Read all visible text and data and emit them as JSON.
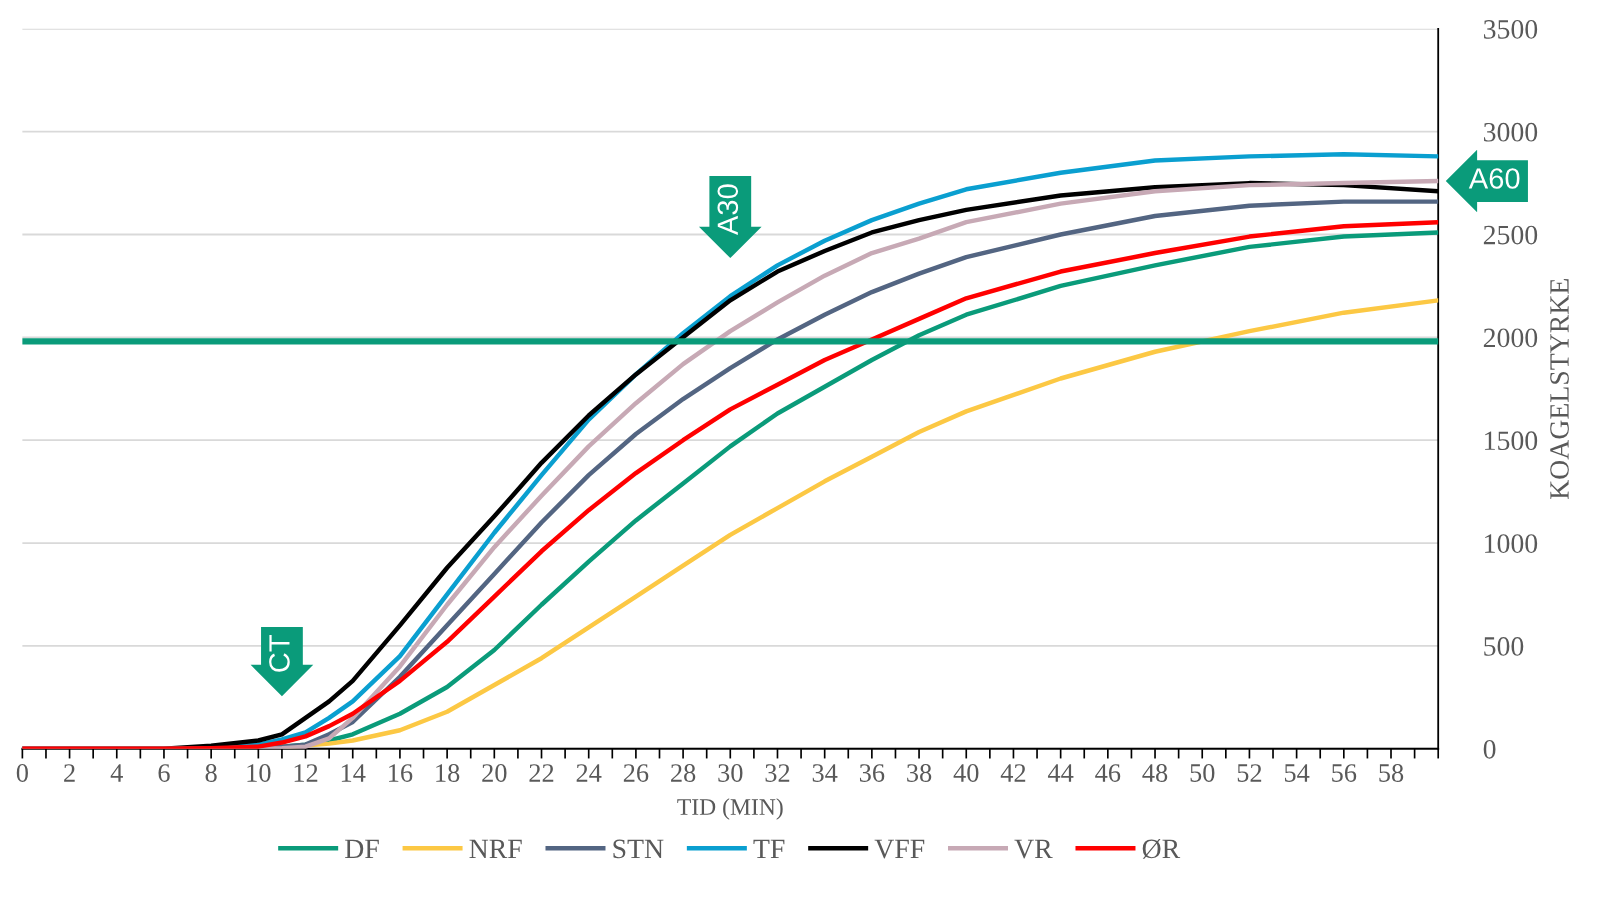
{
  "chart_data": {
    "type": "line",
    "xlabel": "TID (MIN)",
    "ylabel": "KOAGELSTYRKE",
    "x": [
      0,
      6,
      8,
      10,
      11,
      12,
      13,
      14,
      16,
      18,
      20,
      22,
      24,
      26,
      28,
      30,
      32,
      34,
      36,
      38,
      40,
      44,
      48,
      52,
      56,
      60
    ],
    "series": [
      {
        "name": "DF",
        "color": "#0a9b7a",
        "values": [
          null,
          null,
          0,
          3,
          10,
          20,
          40,
          70,
          170,
          300,
          480,
          700,
          910,
          1110,
          1290,
          1470,
          1630,
          1760,
          1890,
          2010,
          2110,
          2250,
          2350,
          2440,
          2490,
          2510
        ]
      },
      {
        "name": "NRF",
        "color": "#fcc844",
        "values": [
          null,
          null,
          null,
          null,
          8,
          15,
          25,
          40,
          90,
          180,
          310,
          440,
          590,
          740,
          890,
          1040,
          1170,
          1300,
          1420,
          1540,
          1640,
          1800,
          1930,
          2030,
          2120,
          2180
        ]
      },
      {
        "name": "STN",
        "color": "#536582",
        "values": [
          0,
          0,
          0,
          5,
          10,
          20,
          70,
          130,
          350,
          600,
          850,
          1100,
          1330,
          1530,
          1700,
          1850,
          1990,
          2110,
          2220,
          2310,
          2390,
          2500,
          2590,
          2640,
          2660,
          2660
        ]
      },
      {
        "name": "TF",
        "color": "#0a9fd0",
        "values": [
          null,
          null,
          5,
          20,
          45,
          80,
          150,
          230,
          450,
          750,
          1050,
          1330,
          1600,
          1820,
          2020,
          2200,
          2350,
          2470,
          2570,
          2650,
          2720,
          2800,
          2860,
          2880,
          2890,
          2880
        ]
      },
      {
        "name": "VFF",
        "color": "#000000",
        "values": [
          0,
          0,
          15,
          40,
          70,
          150,
          230,
          330,
          600,
          880,
          1130,
          1390,
          1620,
          1820,
          2000,
          2180,
          2320,
          2420,
          2510,
          2570,
          2620,
          2690,
          2730,
          2750,
          2740,
          2710
        ]
      },
      {
        "name": "VR",
        "color": "#c7a9b5",
        "values": [
          0,
          0,
          0,
          0,
          3,
          10,
          50,
          150,
          400,
          700,
          980,
          1230,
          1470,
          1680,
          1870,
          2030,
          2170,
          2300,
          2410,
          2480,
          2560,
          2650,
          2710,
          2740,
          2750,
          2760
        ]
      },
      {
        "name": "ØR",
        "color": "#ff0000",
        "values": [
          0,
          0,
          3,
          10,
          30,
          60,
          110,
          170,
          330,
          520,
          740,
          960,
          1160,
          1340,
          1500,
          1650,
          1770,
          1890,
          1990,
          2090,
          2190,
          2320,
          2410,
          2490,
          2540,
          2560
        ]
      }
    ],
    "xlim": [
      0,
      60
    ],
    "xticks": [
      0,
      {
        "value": 1,
        "label": null
      },
      2,
      {
        "value": 3,
        "label": null
      },
      4,
      {
        "value": 5,
        "label": null
      },
      6,
      {
        "value": 7,
        "label": null
      },
      8,
      {
        "value": 9,
        "label": null
      },
      10,
      {
        "value": 11,
        "label": null
      },
      12,
      {
        "value": 13,
        "label": null
      },
      14,
      {
        "value": 15,
        "label": null
      },
      16,
      {
        "value": 17,
        "label": null
      },
      18,
      {
        "value": 19,
        "label": null
      },
      20,
      {
        "value": 21,
        "label": null
      },
      22,
      {
        "value": 23,
        "label": null
      },
      24,
      {
        "value": 25,
        "label": null
      },
      26,
      {
        "value": 27,
        "label": null
      },
      28,
      {
        "value": 29,
        "label": null
      },
      30,
      {
        "value": 31,
        "label": null
      },
      32,
      {
        "value": 33,
        "label": null
      },
      34,
      {
        "value": 35,
        "label": null
      },
      36,
      {
        "value": 37,
        "label": null
      },
      38,
      {
        "value": 39,
        "label": null
      },
      40,
      {
        "value": 41,
        "label": null
      },
      42,
      {
        "value": 43,
        "label": null
      },
      44,
      {
        "value": 45,
        "label": null
      },
      46,
      {
        "value": 47,
        "label": null
      },
      48,
      {
        "value": 49,
        "label": null
      },
      50,
      {
        "value": 51,
        "label": null
      },
      52,
      {
        "value": 53,
        "label": null
      },
      54,
      {
        "value": 55,
        "label": null
      },
      56,
      {
        "value": 57,
        "label": null
      },
      58,
      {
        "value": 59,
        "label": null
      },
      {
        "value": 60,
        "label": null
      }
    ],
    "ylim": [
      0,
      3500
    ],
    "yticks": [
      0,
      500,
      1000,
      1500,
      2000,
      2500,
      3000,
      3500
    ],
    "ref_lines": [
      {
        "axis": "y",
        "value": 1980,
        "color": "#0a9b7a"
      }
    ],
    "annotations": [
      {
        "text": "CT",
        "x": 11,
        "y": 70
      },
      {
        "text": "A30",
        "x": 30,
        "y": 2200
      },
      {
        "text": "A60",
        "x": 60,
        "y": 2760
      }
    ],
    "grid": "y",
    "legend": "bottom",
    "marker": "none",
    "line_style": "solid"
  }
}
